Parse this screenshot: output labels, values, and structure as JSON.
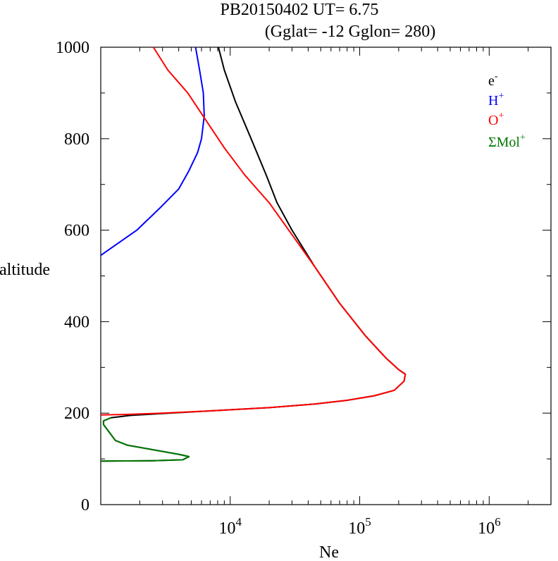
{
  "chart_data": {
    "type": "line",
    "title": "PB20150402   UT=  6.75",
    "subtitle": "(Gglat= -12   Gglon=  280)",
    "xlabel": "Ne",
    "ylabel": "altitude",
    "x_scale": "log",
    "xlim": [
      1000,
      3000000
    ],
    "ylim": [
      0,
      1000
    ],
    "x_tick_labels": [
      {
        "value": 10000,
        "base": "10",
        "exp": "4"
      },
      {
        "value": 100000,
        "base": "10",
        "exp": "5"
      },
      {
        "value": 1000000,
        "base": "10",
        "exp": "6"
      }
    ],
    "y_ticks": [
      0,
      200,
      400,
      600,
      800,
      1000
    ],
    "legend_position": "top-right",
    "series": [
      {
        "name": "e",
        "name_sup": "-",
        "color": "#000000",
        "points": [
          [
            8100,
            1000
          ],
          [
            9000,
            950
          ],
          [
            11000,
            880
          ],
          [
            14500,
            800
          ],
          [
            19000,
            720
          ],
          [
            23000,
            660
          ],
          [
            30000,
            600
          ],
          [
            45000,
            520
          ],
          [
            70000,
            440
          ],
          [
            110000,
            370
          ],
          [
            160000,
            320
          ],
          [
            200000,
            295
          ],
          [
            225000,
            285
          ],
          [
            220000,
            270
          ],
          [
            185000,
            250
          ],
          [
            130000,
            238
          ],
          [
            80000,
            228
          ],
          [
            45000,
            220
          ],
          [
            20000,
            212
          ],
          [
            7000,
            205
          ],
          [
            3000,
            199
          ],
          [
            1700,
            195
          ],
          [
            1200,
            190
          ],
          [
            1050,
            183
          ],
          [
            1050,
            175
          ],
          [
            1300,
            140
          ],
          [
            1600,
            130
          ],
          [
            4000,
            110
          ],
          [
            4800,
            105
          ],
          [
            4300,
            98
          ],
          [
            2500,
            96
          ],
          [
            1000,
            95
          ]
        ]
      },
      {
        "name": "H",
        "name_sup": "+",
        "color": "#0000ff",
        "points": [
          [
            5400,
            1000
          ],
          [
            5800,
            950
          ],
          [
            6200,
            900
          ],
          [
            6300,
            850
          ],
          [
            6000,
            800
          ],
          [
            5600,
            770
          ],
          [
            4800,
            730
          ],
          [
            4000,
            690
          ],
          [
            2900,
            650
          ],
          [
            1900,
            600
          ],
          [
            1000,
            545
          ]
        ]
      },
      {
        "name": "O",
        "name_sup": "+",
        "color": "#ff0000",
        "points": [
          [
            2550,
            1000
          ],
          [
            3300,
            950
          ],
          [
            4700,
            900
          ],
          [
            6500,
            840
          ],
          [
            9000,
            780
          ],
          [
            13000,
            720
          ],
          [
            20000,
            660
          ],
          [
            30000,
            590
          ],
          [
            45000,
            520
          ],
          [
            70000,
            440
          ],
          [
            110000,
            370
          ],
          [
            160000,
            320
          ],
          [
            200000,
            295
          ],
          [
            225000,
            285
          ],
          [
            220000,
            270
          ],
          [
            185000,
            250
          ],
          [
            130000,
            238
          ],
          [
            80000,
            228
          ],
          [
            45000,
            220
          ],
          [
            20000,
            212
          ],
          [
            7000,
            205
          ],
          [
            3000,
            200
          ],
          [
            1500,
            197
          ],
          [
            1000,
            196
          ]
        ]
      },
      {
        "name": "ΣMol",
        "name_sup": "+",
        "color": "#007700",
        "points": [
          [
            1200,
            190
          ],
          [
            1050,
            183
          ],
          [
            1050,
            175
          ],
          [
            1300,
            140
          ],
          [
            1600,
            130
          ],
          [
            4000,
            110
          ],
          [
            4800,
            105
          ],
          [
            4300,
            98
          ],
          [
            2500,
            96
          ],
          [
            1000,
            95
          ]
        ]
      }
    ]
  }
}
